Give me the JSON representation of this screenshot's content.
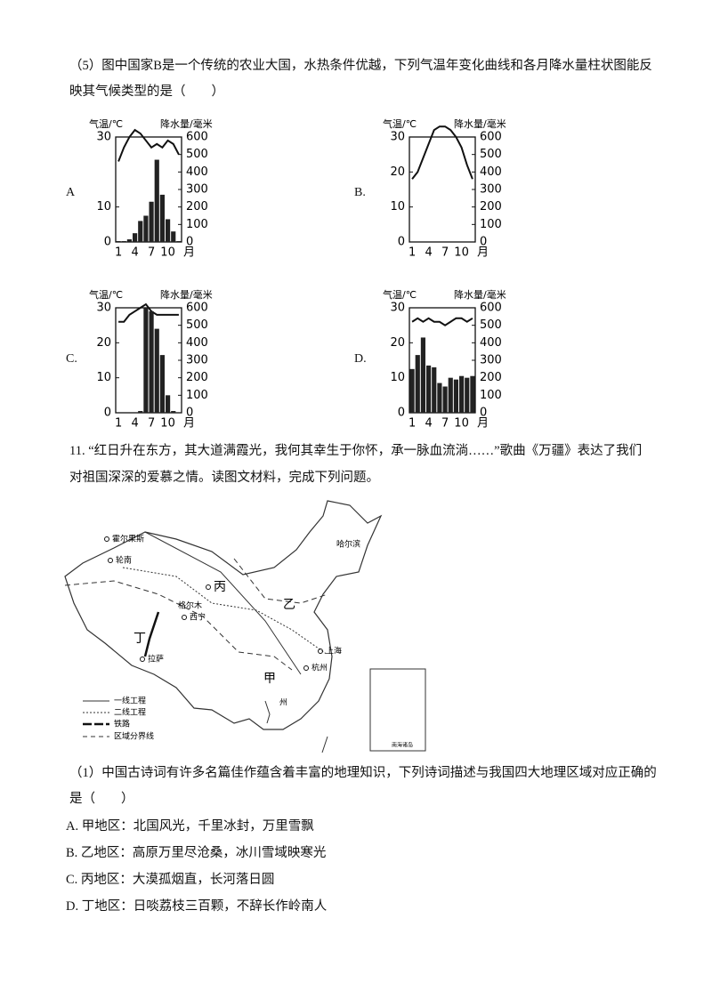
{
  "question5": {
    "stem_line1": "（5）图中国家B是一个传统的农业大国，水热条件优越，下列气温年变化曲线和各月降水量柱状图能反",
    "stem_line2": "映其气候类型的是（　　）"
  },
  "charts": [
    {
      "option": "A",
      "type": "climate",
      "ylabel": "气温/℃",
      "y2label": "降水量/毫米",
      "x_unit": "月",
      "categories": [
        "1",
        null,
        null,
        "4",
        null,
        null,
        "7",
        null,
        null,
        "10",
        null,
        null
      ],
      "ylim": [
        0,
        30
      ],
      "yticks": [
        0,
        10,
        30
      ],
      "y2lim": [
        0,
        600
      ],
      "y2ticks": [
        0,
        100,
        200,
        300,
        400,
        500,
        600
      ],
      "series": [
        {
          "name": "气温",
          "color": "#111111",
          "values": [
            23,
            27,
            30,
            32,
            31,
            29,
            27,
            28,
            27,
            29,
            28,
            25
          ]
        },
        {
          "name": "降水量",
          "color": "#222222",
          "axis": "y2",
          "values": [
            5,
            5,
            15,
            50,
            120,
            150,
            230,
            470,
            270,
            130,
            60,
            5
          ]
        }
      ]
    },
    {
      "option": "B.",
      "type": "climate",
      "ylabel": "气温/℃",
      "y2label": "降水量/毫米",
      "x_unit": "月",
      "categories": [
        "1",
        null,
        null,
        "4",
        null,
        null,
        "7",
        null,
        null,
        "10",
        null,
        null
      ],
      "ylim": [
        0,
        30
      ],
      "yticks": [
        0,
        10,
        20,
        30
      ],
      "y2lim": [
        0,
        600
      ],
      "y2ticks": [
        0,
        100,
        200,
        300,
        400,
        500,
        600
      ],
      "series": [
        {
          "name": "气温",
          "color": "#111111",
          "values": [
            18,
            20,
            24,
            28,
            32,
            33,
            33,
            32,
            30,
            27,
            22,
            18
          ]
        },
        {
          "name": "降水量",
          "color": "#222222",
          "axis": "y2",
          "values": [
            0,
            0,
            0,
            0,
            0,
            0,
            0,
            0,
            0,
            0,
            0,
            0
          ]
        }
      ]
    },
    {
      "option": "C.",
      "type": "climate",
      "ylabel": "气温/℃",
      "y2label": "降水量/毫米",
      "x_unit": "月",
      "categories": [
        "1",
        null,
        null,
        "4",
        null,
        null,
        "7",
        null,
        null,
        "10",
        null,
        null
      ],
      "ylim": [
        0,
        30
      ],
      "yticks": [
        0,
        10,
        20,
        30
      ],
      "y2lim": [
        0,
        600
      ],
      "y2ticks": [
        0,
        100,
        200,
        300,
        400,
        500,
        600
      ],
      "series": [
        {
          "name": "气温",
          "color": "#111111",
          "values": [
            26,
            26,
            28,
            29,
            30,
            31,
            29,
            28,
            28,
            28,
            28,
            28
          ]
        },
        {
          "name": "降水量",
          "color": "#222222",
          "axis": "y2",
          "values": [
            0,
            0,
            0,
            0,
            10,
            600,
            580,
            480,
            330,
            100,
            10,
            0
          ]
        }
      ]
    },
    {
      "option": "D.",
      "type": "climate",
      "ylabel": "气温/℃",
      "y2label": "降水量/毫米",
      "x_unit": "月",
      "categories": [
        "1",
        null,
        null,
        "4",
        null,
        null,
        "7",
        null,
        null,
        "10",
        null,
        null
      ],
      "ylim": [
        0,
        30
      ],
      "yticks": [
        0,
        10,
        20,
        30
      ],
      "y2lim": [
        0,
        600
      ],
      "y2ticks": [
        0,
        100,
        200,
        300,
        400,
        500,
        600
      ],
      "series": [
        {
          "name": "气温",
          "color": "#111111",
          "values": [
            26,
            27,
            26,
            27,
            26,
            26,
            25,
            26,
            27,
            27,
            26,
            27
          ]
        },
        {
          "name": "降水量",
          "color": "#222222",
          "axis": "y2",
          "values": [
            250,
            330,
            430,
            270,
            260,
            170,
            150,
            200,
            190,
            210,
            200,
            210
          ]
        }
      ]
    }
  ],
  "question11": {
    "line1": "11. “红日升在东方，其大道满霞光，我何其幸生于你怀，承一脉血流淌……”歌曲《万疆》表达了我们",
    "line2": "对祖国深深的爱慕之情。读图文材料，完成下列问题。"
  },
  "map": {
    "labels": [
      "霍尔果斯",
      "轮南",
      "哈尔滨",
      "丙",
      "乙",
      "格尔木",
      "西宁",
      "丁",
      "拉萨",
      "上海",
      "杭州",
      "甲",
      "州"
    ],
    "legend": [
      "一线工程",
      "二线工程",
      "铁路",
      "区域分界线"
    ],
    "inset_label": "南海诸岛"
  },
  "question1": {
    "stem_line1": "（1）中国古诗词有许多名篇佳作蕴含着丰富的地理知识，下列诗词描述与我国四大地理区域对应正确的",
    "stem_line2": "是（　　）",
    "options": [
      "A. 甲地区：北国风光，千里冰封，万里雪飘",
      "B. 乙地区：高原万里尽沧桑，冰川雪域映寒光",
      "C. 丙地区：大漠孤烟直，长河落日圆",
      "D. 丁地区：日啖荔枝三百颗，不辞长作岭南人"
    ]
  }
}
